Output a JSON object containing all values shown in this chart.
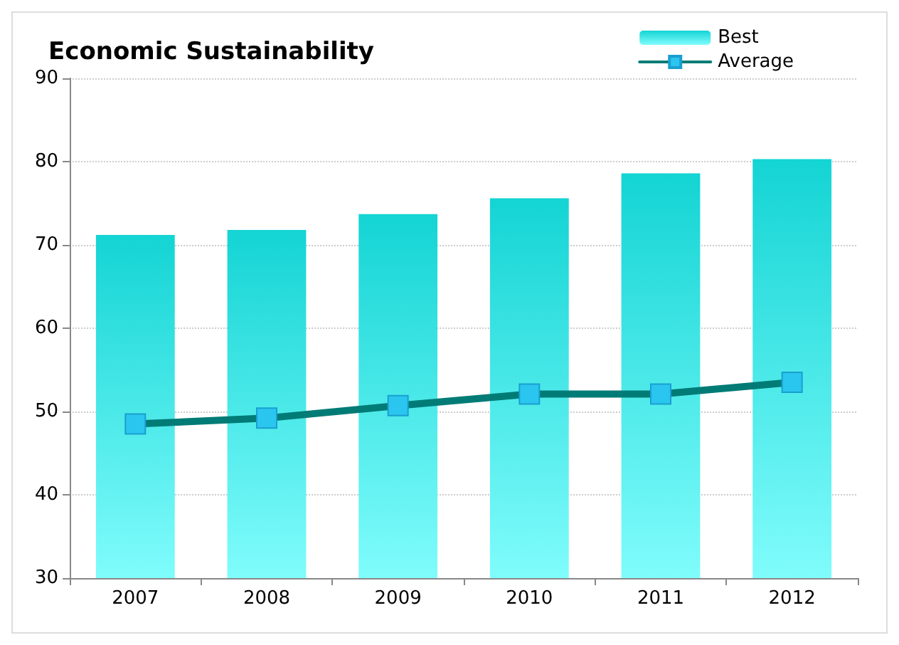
{
  "chart_data": {
    "type": "bar",
    "title": "Economic Sustainability",
    "categories": [
      "2007",
      "2008",
      "2009",
      "2010",
      "2011",
      "2012"
    ],
    "series": [
      {
        "name": "Best",
        "color": "#14d4d4",
        "values": [
          71.2,
          71.8,
          73.7,
          75.6,
          78.6,
          80.3
        ]
      },
      {
        "name": "Average",
        "type": "line",
        "color": "#007b76",
        "values": [
          48.5,
          49.2,
          50.7,
          52.1,
          52.1,
          53.5
        ]
      }
    ],
    "ylim": [
      30,
      90
    ],
    "yticks": [
      30,
      40,
      50,
      60,
      70,
      80,
      90
    ],
    "grid": "y",
    "legend": "top right",
    "marker": "square",
    "line_style": "solid"
  }
}
